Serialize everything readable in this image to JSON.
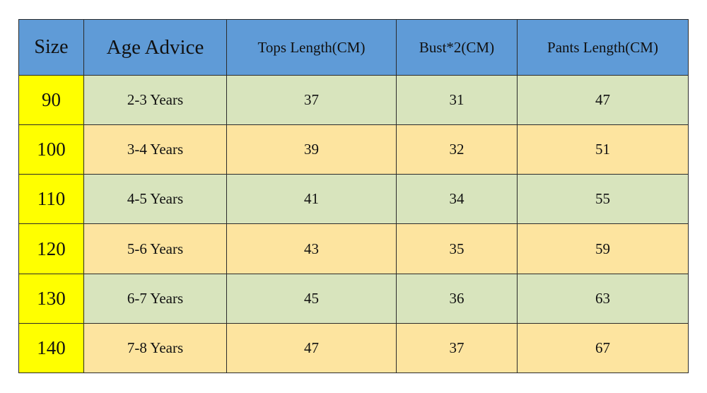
{
  "table": {
    "header": [
      "Size",
      "Age Advice",
      "Tops Length(CM)",
      "Bust*2(CM)",
      "Pants Length(CM)"
    ],
    "rows": [
      [
        90,
        "2-3 Years",
        37,
        31,
        47
      ],
      [
        100,
        "3-4 Years",
        39,
        32,
        51
      ],
      [
        110,
        "4-5 Years",
        41,
        34,
        55
      ],
      [
        120,
        "5-6 Years",
        43,
        35,
        59
      ],
      [
        130,
        "6-7 Years",
        45,
        36,
        63
      ],
      [
        140,
        "7-8 Years",
        47,
        37,
        67
      ]
    ]
  }
}
